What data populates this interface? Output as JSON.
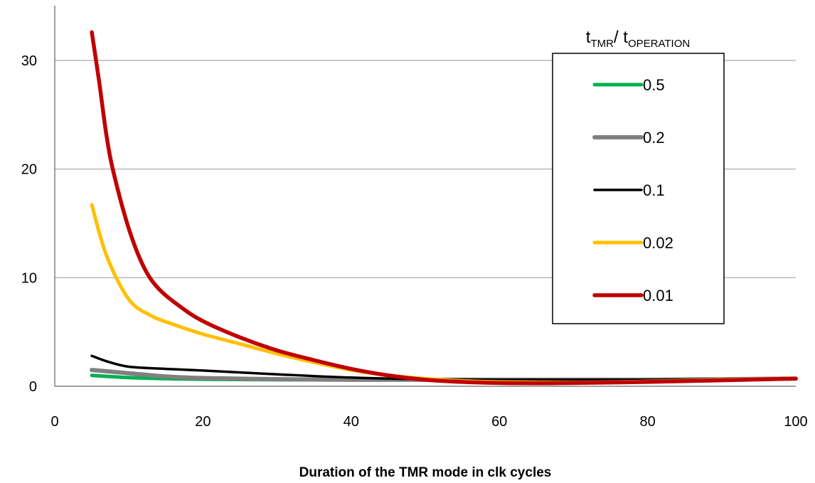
{
  "chart_data": {
    "type": "line",
    "title": "",
    "xlabel": "Duration of the TMR mode in clk cycles",
    "ylabel": "",
    "xlim": [
      0,
      100
    ],
    "ylim": [
      0,
      35
    ],
    "x_ticks": [
      "0",
      "20",
      "40",
      "60",
      "80",
      "100"
    ],
    "y_ticks": [
      "0",
      "10",
      "20",
      "30"
    ],
    "grid": "horizontal",
    "legend": {
      "placement": "top-right",
      "title_main_1": "t",
      "title_sub_1": "TMR",
      "title_sep": "/ t",
      "title_sub_2": "OPERATION"
    },
    "series": [
      {
        "name": "0.5",
        "color": "#00b050",
        "x": [
          5,
          10,
          15,
          20,
          30,
          40,
          50,
          60,
          70,
          80,
          90,
          100
        ],
        "y": [
          1.0,
          0.8,
          0.7,
          0.65,
          0.6,
          0.6,
          0.6,
          0.6,
          0.6,
          0.6,
          0.65,
          0.7
        ]
      },
      {
        "name": "0.2",
        "color": "#808080",
        "x": [
          5,
          10,
          15,
          20,
          30,
          40,
          50,
          60,
          70,
          80,
          90,
          100
        ],
        "y": [
          1.5,
          1.2,
          0.9,
          0.75,
          0.65,
          0.6,
          0.6,
          0.6,
          0.6,
          0.6,
          0.65,
          0.7
        ]
      },
      {
        "name": "0.1",
        "color": "#000000",
        "x": [
          5,
          7,
          10,
          15,
          20,
          30,
          40,
          50,
          60,
          70,
          80,
          90,
          100
        ],
        "y": [
          2.8,
          2.3,
          1.8,
          1.6,
          1.45,
          1.1,
          0.8,
          0.65,
          0.6,
          0.6,
          0.6,
          0.65,
          0.7
        ]
      },
      {
        "name": "0.02",
        "color": "#ffc000",
        "x": [
          5,
          7,
          10,
          13,
          16,
          20,
          25,
          30,
          35,
          40,
          45,
          50,
          55,
          60,
          70,
          80,
          90,
          100
        ],
        "y": [
          16.7,
          12.0,
          8.0,
          6.5,
          5.7,
          4.8,
          3.9,
          3.0,
          2.2,
          1.5,
          1.0,
          0.7,
          0.5,
          0.4,
          0.35,
          0.45,
          0.6,
          0.7
        ]
      },
      {
        "name": "0.01",
        "color": "#c00000",
        "x": [
          5,
          6,
          7,
          8,
          10,
          12,
          14,
          17,
          20,
          25,
          30,
          35,
          40,
          45,
          50,
          55,
          60,
          65,
          70,
          80,
          90,
          100
        ],
        "y": [
          32.6,
          28.0,
          23.0,
          19.5,
          14.5,
          11.0,
          9.0,
          7.3,
          6.0,
          4.5,
          3.3,
          2.4,
          1.6,
          1.0,
          0.6,
          0.4,
          0.3,
          0.28,
          0.3,
          0.4,
          0.55,
          0.7
        ]
      }
    ]
  }
}
